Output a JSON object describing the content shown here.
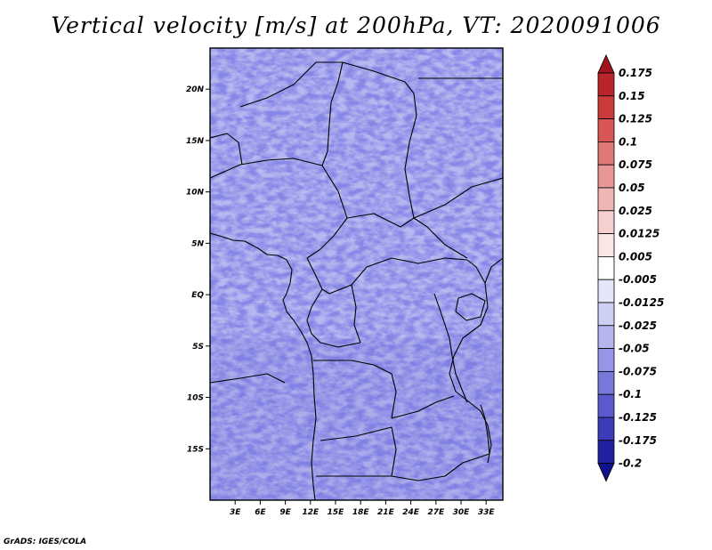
{
  "title": "Vertical velocity [m/s] at 200hPa, VT: 2020091006",
  "credit": "GrADS: IGES/COLA",
  "map": {
    "lon_labels": [
      "3E",
      "6E",
      "9E",
      "12E",
      "15E",
      "18E",
      "21E",
      "24E",
      "27E",
      "30E",
      "33E"
    ],
    "lat_labels": [
      "20N",
      "15N",
      "10N",
      "5N",
      "EQ",
      "5S",
      "10S",
      "15S"
    ],
    "lon_range_deg": [
      0,
      35
    ],
    "lat_range_deg": [
      -20,
      24
    ]
  },
  "colorbar": {
    "labels": [
      "0.175",
      "0.15",
      "0.125",
      "0.1",
      "0.075",
      "0.05",
      "0.025",
      "0.0125",
      "0.005",
      "-0.005",
      "-0.0125",
      "-0.025",
      "-0.05",
      "-0.075",
      "-0.1",
      "-0.125",
      "-0.175",
      "-0.2"
    ],
    "colors": [
      "#a01420",
      "#b8262c",
      "#cc3b3b",
      "#d85656",
      "#e07878",
      "#e89797",
      "#f0b6b6",
      "#f6d0d0",
      "#fbe6e6",
      "#ffffff",
      "#e6e6fb",
      "#cfcff6",
      "#b5b5f0",
      "#9696e6",
      "#7878da",
      "#5a5acc",
      "#3c3cb8",
      "#2222a0",
      "#10108a"
    ]
  },
  "colors": {
    "positive": "#d04040",
    "negative": "#4040c8",
    "neutral": "#ffffff",
    "border": "#000000"
  }
}
